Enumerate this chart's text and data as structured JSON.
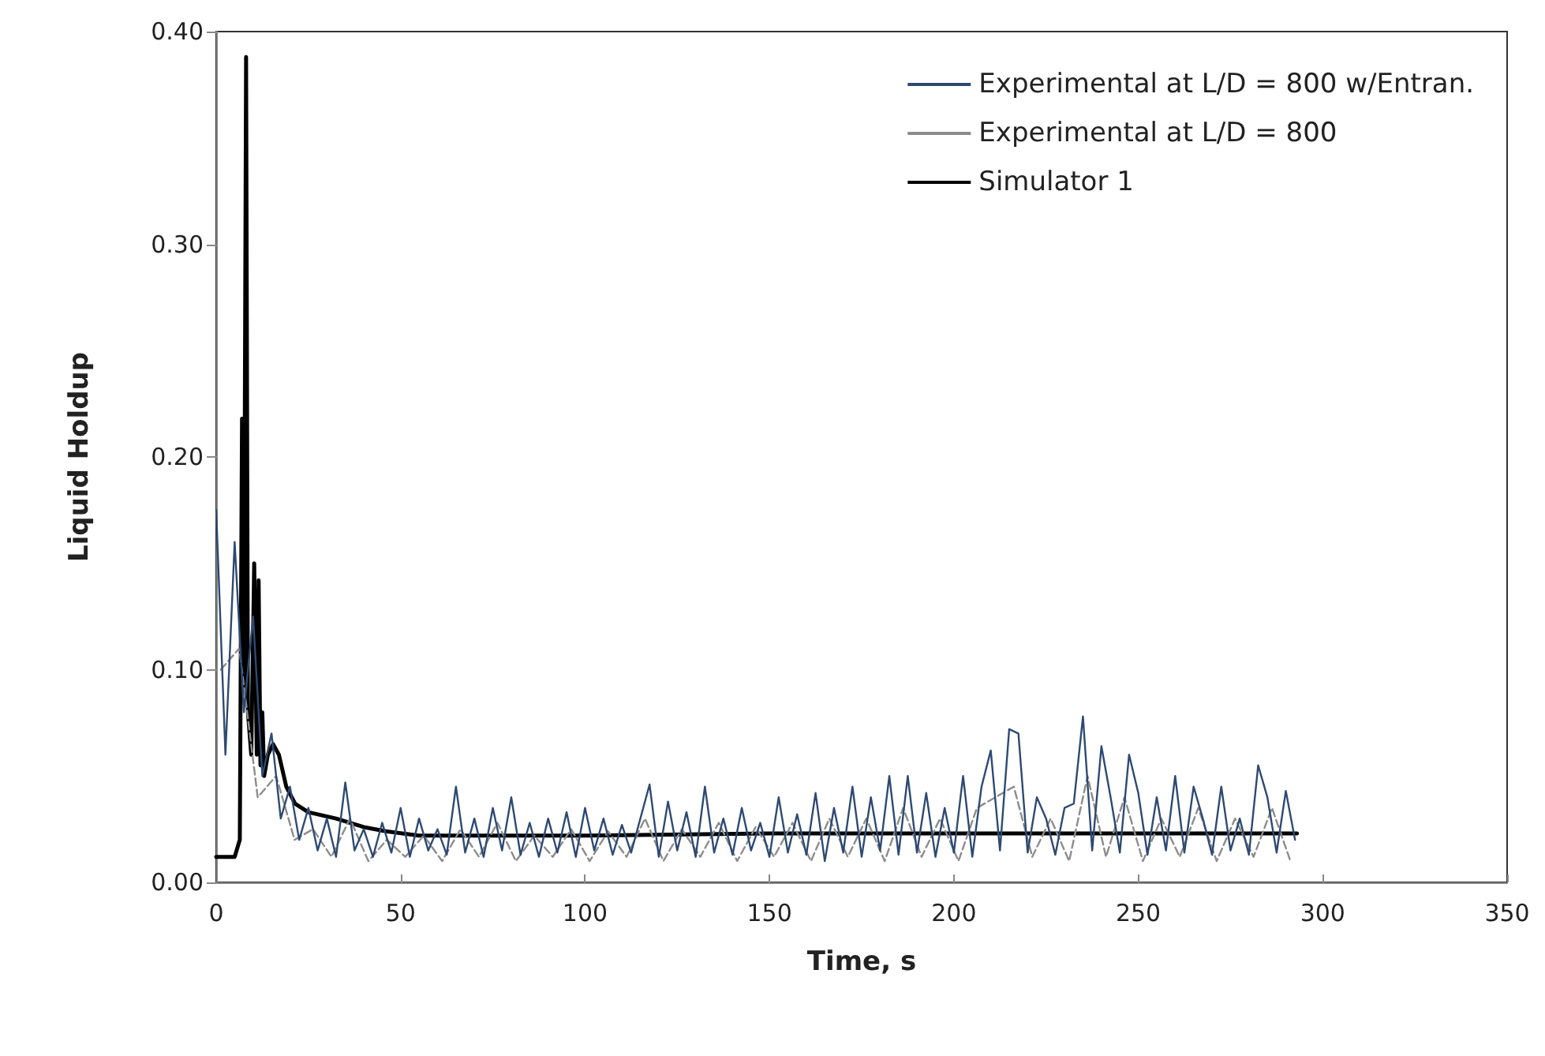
{
  "chart_data": {
    "type": "line",
    "xlabel": "Time, s",
    "ylabel": "Liquid Holdup",
    "xlim": [
      0,
      350
    ],
    "xticks": [
      0,
      50,
      100,
      150,
      200,
      250,
      300,
      350
    ],
    "ylim": [
      0,
      0.4
    ],
    "yticks": [
      {
        "value": 0,
        "label": "0.00"
      },
      {
        "value": 0.1,
        "label": "0.10"
      },
      {
        "value": 0.2,
        "label": "0.20"
      },
      {
        "value": 0.3,
        "label": "0.30"
      },
      {
        "value": 0.4,
        "label": "0.40"
      }
    ],
    "grid": false,
    "legend": "top right",
    "marker": "none",
    "x": [
      0,
      2.5,
      5,
      7.5,
      10,
      12.5,
      15,
      17.5,
      20,
      22.5,
      25,
      27.5,
      30,
      32.5,
      35,
      37.5,
      40,
      42.5,
      45,
      47.5,
      50,
      52.5,
      55,
      57.5,
      60,
      62.5,
      65,
      67.5,
      70,
      72.5,
      75,
      77.5,
      80,
      82.5,
      85,
      87.5,
      90,
      92.5,
      95,
      97.5,
      100,
      102.5,
      105,
      107.5,
      110,
      112.5,
      115,
      117.5,
      120,
      122.5,
      125,
      127.5,
      130,
      132.5,
      135,
      137.5,
      140,
      142.5,
      145,
      147.5,
      150,
      152.5,
      155,
      157.5,
      160,
      162.5,
      165,
      167.5,
      170,
      172.5,
      175,
      177.5,
      180,
      182.5,
      185,
      187.5,
      190,
      192.5,
      195,
      197.5,
      200,
      202.5,
      205,
      207.5,
      210,
      212.5,
      215,
      217.5,
      220,
      222.5,
      225,
      227.5,
      230,
      232.5,
      235,
      237.5,
      240,
      242.5,
      245,
      247.5,
      250,
      252.5,
      255,
      257.5,
      260,
      262.5,
      265,
      267.5,
      270,
      272.5,
      275,
      277.5,
      280,
      282.5,
      285,
      287.5,
      290,
      292.5
    ],
    "series": [
      {
        "name": "Experimental at L/D = 800 w/Entran.",
        "color": "#2e4a73",
        "line_style": "solid",
        "values": [
          0.175,
          0.06,
          0.16,
          0.08,
          0.125,
          0.05,
          0.07,
          0.03,
          0.045,
          0.02,
          0.035,
          0.015,
          0.03,
          0.012,
          0.047,
          0.015,
          0.025,
          0.012,
          0.028,
          0.014,
          0.035,
          0.012,
          0.03,
          0.015,
          0.025,
          0.013,
          0.045,
          0.014,
          0.03,
          0.012,
          0.035,
          0.015,
          0.04,
          0.013,
          0.028,
          0.012,
          0.03,
          0.014,
          0.033,
          0.012,
          0.035,
          0.015,
          0.03,
          0.013,
          0.027,
          0.014,
          0.03,
          0.046,
          0.012,
          0.038,
          0.015,
          0.033,
          0.012,
          0.045,
          0.014,
          0.03,
          0.013,
          0.035,
          0.015,
          0.028,
          0.012,
          0.04,
          0.014,
          0.032,
          0.013,
          0.042,
          0.01,
          0.035,
          0.014,
          0.045,
          0.012,
          0.04,
          0.015,
          0.05,
          0.013,
          0.05,
          0.014,
          0.042,
          0.012,
          0.035,
          0.014,
          0.05,
          0.012,
          0.045,
          0.062,
          0.015,
          0.072,
          0.07,
          0.014,
          0.04,
          0.03,
          0.013,
          0.035,
          0.037,
          0.078,
          0.015,
          0.064,
          0.04,
          0.014,
          0.06,
          0.042,
          0.013,
          0.04,
          0.015,
          0.05,
          0.014,
          0.045,
          0.03,
          0.013,
          0.045,
          0.015,
          0.03,
          0.013,
          0.055,
          0.04,
          0.014,
          0.043,
          0.02
        ]
      },
      {
        "name": "Experimental at L/D = 800",
        "color": "#8c8c8c",
        "line_style": "dashed",
        "x": [
          1.25,
          6.25,
          11.25,
          16.25,
          21.25,
          26.25,
          31.25,
          36.25,
          41.25,
          46.25,
          51.25,
          56.25,
          61.25,
          66.25,
          71.25,
          76.25,
          81.25,
          86.25,
          91.25,
          96.25,
          101.25,
          106.25,
          111.25,
          116.25,
          121.25,
          126.25,
          131.25,
          136.25,
          141.25,
          146.25,
          151.25,
          156.25,
          161.25,
          166.25,
          171.25,
          176.25,
          181.25,
          186.25,
          191.25,
          196.25,
          201.25,
          206.25,
          211.25,
          216.25,
          221.25,
          226.25,
          231.25,
          236.25,
          241.25,
          246.25,
          251.25,
          256.25,
          261.25,
          266.25,
          271.25,
          276.25,
          281.25,
          286.25,
          291.25
        ],
        "values": [
          0.1,
          0.11,
          0.04,
          0.05,
          0.02,
          0.025,
          0.012,
          0.03,
          0.01,
          0.02,
          0.012,
          0.022,
          0.01,
          0.025,
          0.012,
          0.028,
          0.01,
          0.022,
          0.012,
          0.025,
          0.01,
          0.024,
          0.012,
          0.03,
          0.01,
          0.025,
          0.012,
          0.028,
          0.01,
          0.026,
          0.012,
          0.028,
          0.01,
          0.03,
          0.012,
          0.03,
          0.01,
          0.035,
          0.012,
          0.03,
          0.01,
          0.035,
          0.04,
          0.045,
          0.012,
          0.03,
          0.01,
          0.05,
          0.012,
          0.04,
          0.01,
          0.03,
          0.012,
          0.035,
          0.01,
          0.03,
          0.012,
          0.035,
          0.01
        ]
      },
      {
        "name": "Simulator 1",
        "color": "#000000",
        "line_style": "solid",
        "x": [
          0,
          5,
          6.4,
          7,
          7.5,
          8.1,
          8.6,
          9.5,
          10.3,
          11,
          11.5,
          12,
          12.5,
          13,
          14,
          15.4,
          17,
          19,
          21.4,
          25,
          32.5,
          40,
          46,
          55,
          70,
          100,
          150,
          200,
          293
        ],
        "values": [
          0.012,
          0.012,
          0.02,
          0.218,
          0.09,
          0.388,
          0.08,
          0.06,
          0.15,
          0.06,
          0.142,
          0.055,
          0.08,
          0.05,
          0.06,
          0.065,
          0.06,
          0.045,
          0.037,
          0.033,
          0.03,
          0.026,
          0.024,
          0.022,
          0.022,
          0.022,
          0.023,
          0.023,
          0.023
        ]
      }
    ]
  }
}
